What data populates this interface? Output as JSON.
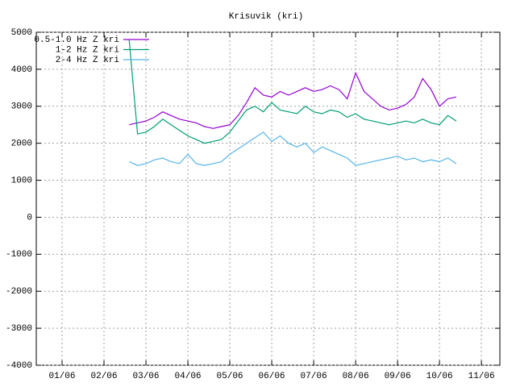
{
  "chart_data": {
    "type": "line",
    "title": "Krisuvik (kri)",
    "x": [
      2.6,
      2.8,
      3.0,
      3.2,
      3.4,
      3.6,
      3.8,
      4.0,
      4.2,
      4.4,
      4.6,
      4.8,
      5.0,
      5.2,
      5.4,
      5.6,
      5.8,
      6.0,
      6.2,
      6.4,
      6.6,
      6.8,
      7.0,
      7.2,
      7.4,
      7.6,
      7.8,
      8.0,
      8.2,
      8.4,
      8.6,
      8.8,
      9.0,
      9.2,
      9.4,
      9.6,
      9.8,
      10.0,
      10.2,
      10.4
    ],
    "series": [
      {
        "name": "0.5-1.0 Hz Z kri",
        "color": "#9400d3",
        "values": [
          2500,
          2550,
          2600,
          2700,
          2850,
          2750,
          2650,
          2600,
          2550,
          2450,
          2400,
          2450,
          2500,
          2750,
          3100,
          3500,
          3300,
          3250,
          3400,
          3300,
          3400,
          3500,
          3400,
          3450,
          3550,
          3450,
          3200,
          3900,
          3400,
          3200,
          3000,
          2900,
          2950,
          3050,
          3250,
          3750,
          3450,
          3000,
          3200,
          3250
        ]
      },
      {
        "name": "1-2 Hz Z kri",
        "color": "#009e73",
        "values": [
          4800,
          2250,
          2300,
          2450,
          2650,
          2500,
          2350,
          2200,
          2100,
          2000,
          2050,
          2100,
          2300,
          2600,
          2900,
          3000,
          2850,
          3100,
          2900,
          2850,
          2800,
          3000,
          2850,
          2800,
          2900,
          2850,
          2700,
          2800,
          2650,
          2600,
          2550,
          2500,
          2550,
          2600,
          2550,
          2650,
          2550,
          2500,
          2750,
          2600
        ]
      },
      {
        "name": "2-4 Hz Z kri",
        "color": "#56b4e9",
        "values": [
          1500,
          1400,
          1450,
          1550,
          1600,
          1500,
          1450,
          1700,
          1450,
          1400,
          1450,
          1500,
          1700,
          1850,
          2000,
          2150,
          2300,
          2050,
          2200,
          2000,
          1900,
          2000,
          1750,
          1900,
          1800,
          1700,
          1600,
          1400,
          1450,
          1500,
          1550,
          1600,
          1650,
          1550,
          1600,
          1500,
          1550,
          1500,
          1600,
          1450
        ]
      }
    ],
    "xlim": [
      0.385,
      11.44
    ],
    "xticks": [
      {
        "value": 1,
        "label": "01/06"
      },
      {
        "value": 2,
        "label": "02/06"
      },
      {
        "value": 3,
        "label": "03/06"
      },
      {
        "value": 4,
        "label": "04/06"
      },
      {
        "value": 5,
        "label": "05/06"
      },
      {
        "value": 6,
        "label": "06/06"
      },
      {
        "value": 7,
        "label": "07/06"
      },
      {
        "value": 8,
        "label": "08/06"
      },
      {
        "value": 9,
        "label": "09/06"
      },
      {
        "value": 10,
        "label": "10/06"
      },
      {
        "value": 11,
        "label": "11/06"
      }
    ],
    "ylim": [
      -4000,
      5000
    ],
    "yticks": [
      -4000,
      -3000,
      -2000,
      -1000,
      0,
      1000,
      2000,
      3000,
      4000,
      5000
    ],
    "grid": true,
    "legend": "top-left"
  }
}
